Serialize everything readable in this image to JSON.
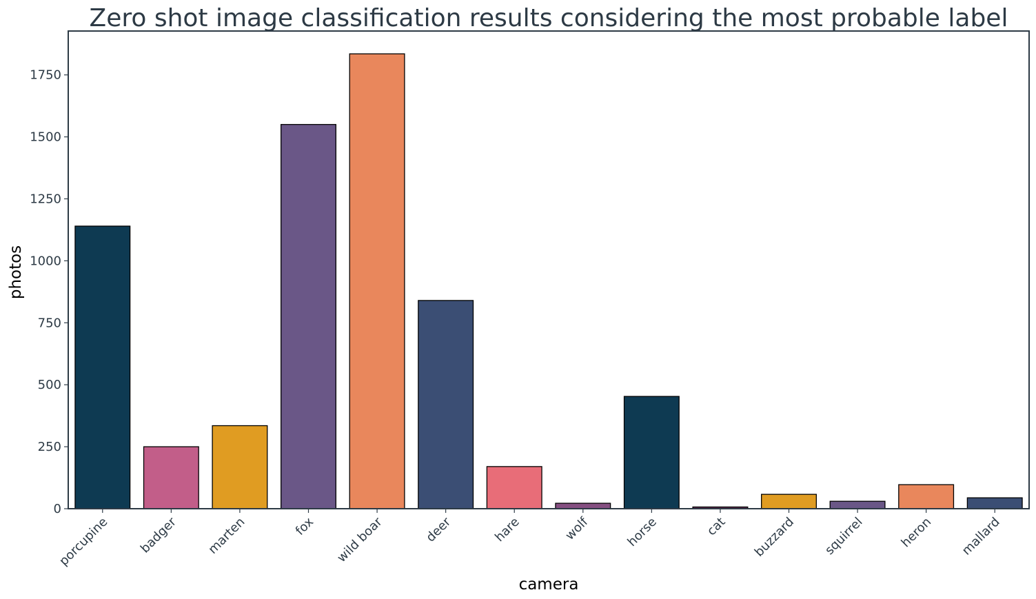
{
  "chart_data": {
    "type": "bar",
    "title": "Zero shot image classification results considering the most probable label",
    "xlabel": "camera",
    "ylabel": "photos",
    "categories": [
      "porcupine",
      "badger",
      "marten",
      "fox",
      "wild boar",
      "deer",
      "hare",
      "wolf",
      "horse",
      "cat",
      "buzzard",
      "squirrel",
      "heron",
      "mallard"
    ],
    "values": [
      1140,
      250,
      335,
      1550,
      1835,
      840,
      170,
      22,
      453,
      7,
      58,
      30,
      97,
      44
    ],
    "colors": [
      "#0e3a52",
      "#c25e89",
      "#e09c22",
      "#6a5787",
      "#e9875c",
      "#3b4e74",
      "#e86d78",
      "#854f81",
      "#0e3a52",
      "#632f55",
      "#e09c22",
      "#6a5787",
      "#e9875c",
      "#3b4e74"
    ],
    "yticks": [
      0,
      250,
      500,
      750,
      1000,
      1250,
      1500,
      1750
    ],
    "ylim": [
      0,
      1927
    ],
    "grid": false,
    "legend": "none"
  }
}
